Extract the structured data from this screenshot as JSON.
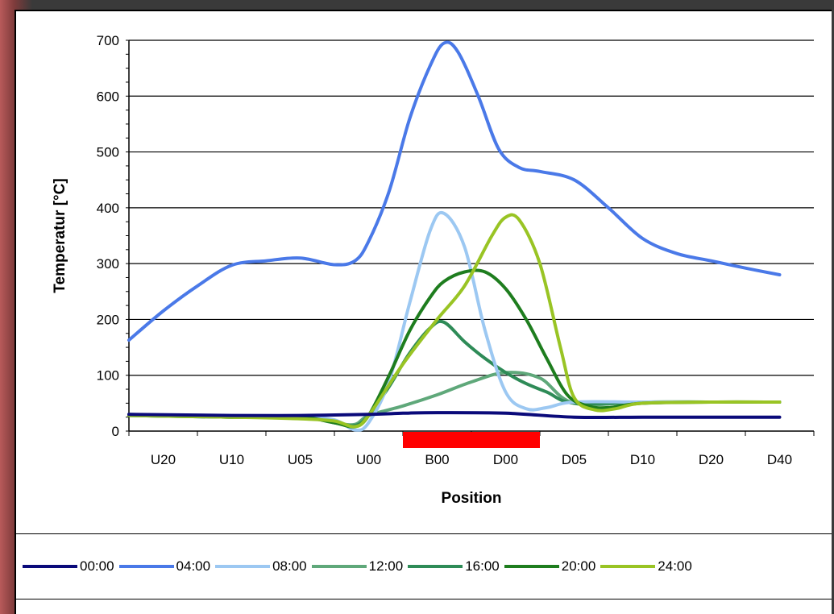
{
  "chart_data": {
    "type": "line",
    "xlabel": "Position",
    "ylabel": "Temperatur [°C]",
    "categories": [
      "U20",
      "U10",
      "U05",
      "U00",
      "B00",
      "D00",
      "D05",
      "D10",
      "D20",
      "D40"
    ],
    "ylim": [
      0,
      700
    ],
    "yticks": [
      0,
      100,
      200,
      300,
      400,
      500,
      600,
      700
    ],
    "grid": "horizontal",
    "legend_position": "bottom",
    "highlight_band": {
      "from": "U00",
      "to": "D05",
      "color": "#ff0000"
    },
    "series": [
      {
        "name": "00:00",
        "color": "#0a0a7a",
        "x": [
          -0.5,
          1.0,
          2.0,
          3.0,
          3.5,
          4.0,
          5.0,
          6.0,
          7.0,
          8.0,
          9.0
        ],
        "values": [
          30,
          28,
          28,
          30,
          32,
          33,
          32,
          25,
          25,
          25,
          25
        ]
      },
      {
        "name": "04:00",
        "color": "#4a79e8",
        "x": [
          -0.5,
          0.0,
          0.5,
          1.0,
          1.5,
          2.0,
          2.5,
          2.8,
          3.0,
          3.3,
          3.6,
          3.9,
          4.1,
          4.3,
          4.6,
          4.9,
          5.2,
          5.5,
          6.0,
          6.5,
          7.0,
          7.5,
          8.0,
          8.5,
          9.0
        ],
        "values": [
          163,
          215,
          260,
          297,
          305,
          310,
          298,
          305,
          340,
          430,
          560,
          655,
          695,
          680,
          600,
          505,
          472,
          465,
          450,
          400,
          345,
          318,
          305,
          292,
          280
        ]
      },
      {
        "name": "08:00",
        "color": "#9cc8f2",
        "x": [
          -0.5,
          1.0,
          2.0,
          2.5,
          2.8,
          3.0,
          3.3,
          3.6,
          3.9,
          4.1,
          4.4,
          4.7,
          5.0,
          5.3,
          5.6,
          6.0,
          7.0,
          8.0,
          9.0
        ],
        "values": [
          28,
          25,
          25,
          20,
          2,
          15,
          90,
          230,
          360,
          390,
          330,
          180,
          70,
          40,
          42,
          52,
          52,
          52,
          52
        ]
      },
      {
        "name": "12:00",
        "color": "#5fa87a",
        "x": [
          -0.5,
          1.0,
          2.0,
          2.5,
          2.8,
          3.0,
          3.5,
          4.0,
          4.5,
          5.0,
          5.5,
          6.0,
          7.0,
          8.0,
          9.0
        ],
        "values": [
          30,
          25,
          25,
          15,
          12,
          28,
          45,
          65,
          88,
          105,
          95,
          50,
          52,
          52,
          52
        ]
      },
      {
        "name": "16:00",
        "color": "#2e8b57",
        "x": [
          -0.5,
          1.0,
          2.0,
          2.5,
          2.8,
          3.0,
          3.3,
          3.6,
          3.9,
          4.1,
          4.4,
          4.7,
          5.0,
          5.3,
          5.6,
          6.0,
          7.0,
          8.0,
          9.0
        ],
        "values": [
          28,
          25,
          25,
          15,
          10,
          28,
          80,
          140,
          185,
          195,
          160,
          130,
          105,
          85,
          70,
          50,
          52,
          52,
          52
        ]
      },
      {
        "name": "20:00",
        "color": "#1e7d1e",
        "x": [
          -0.5,
          1.0,
          2.0,
          2.5,
          2.8,
          3.0,
          3.3,
          3.6,
          3.9,
          4.1,
          4.4,
          4.7,
          5.0,
          5.3,
          5.6,
          5.9,
          6.2,
          6.5,
          7.0,
          8.0,
          9.0
        ],
        "values": [
          28,
          25,
          25,
          15,
          8,
          28,
          100,
          180,
          240,
          268,
          285,
          285,
          255,
          200,
          130,
          65,
          45,
          42,
          50,
          52,
          52
        ]
      },
      {
        "name": "24:00",
        "color": "#99c424",
        "x": [
          -0.5,
          1.0,
          2.0,
          2.5,
          2.8,
          3.0,
          3.5,
          4.0,
          4.4,
          4.8,
          5.0,
          5.2,
          5.5,
          5.8,
          6.0,
          6.3,
          6.6,
          7.0,
          8.0,
          9.0
        ],
        "values": [
          28,
          25,
          22,
          18,
          8,
          28,
          120,
          200,
          260,
          350,
          383,
          378,
          300,
          150,
          60,
          38,
          40,
          50,
          52,
          52
        ]
      }
    ]
  }
}
